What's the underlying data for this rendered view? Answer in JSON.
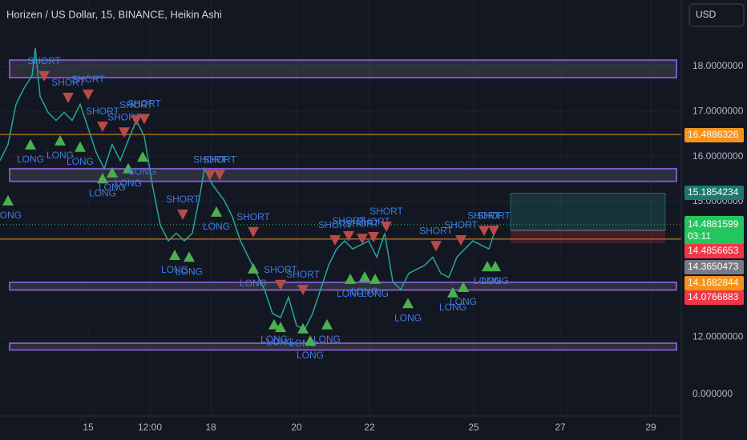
{
  "chart_data": {
    "type": "line",
    "title": "Horizen / US Dollar, 15, BINANCE, Heikin Ashi",
    "currency": "USD",
    "x": [
      0,
      10,
      20,
      30,
      40,
      44,
      50,
      60,
      70,
      80,
      90,
      100,
      110,
      120,
      130,
      140,
      150,
      160,
      170,
      180,
      190,
      200,
      210,
      220,
      230,
      240,
      250,
      255,
      265,
      280,
      290,
      300,
      310,
      320,
      330,
      340,
      350,
      360,
      370,
      380,
      390,
      400,
      410,
      420,
      430,
      440,
      450,
      460,
      470,
      480,
      490,
      500,
      510,
      520,
      530,
      540,
      550,
      560,
      570,
      580,
      590,
      600,
      610,
      620
    ],
    "values": [
      15.91,
      16.27,
      17.16,
      17.52,
      17.79,
      18.41,
      17.34,
      16.98,
      16.8,
      16.98,
      16.8,
      17.16,
      16.63,
      16.09,
      15.73,
      16.27,
      15.91,
      16.36,
      16.8,
      16.45,
      15.38,
      14.48,
      14.13,
      14.3,
      14.13,
      14.3,
      15.2,
      15.73,
      15.38,
      15.02,
      14.66,
      14.13,
      13.77,
      13.41,
      13.05,
      12.52,
      12.43,
      12.88,
      12.25,
      12.16,
      12.52,
      13.05,
      13.59,
      13.95,
      14.13,
      13.95,
      14.04,
      14.13,
      13.77,
      14.3,
      13.23,
      13.05,
      13.41,
      13.5,
      13.59,
      13.77,
      13.41,
      13.32,
      13.77,
      13.95,
      14.13,
      14.04,
      13.95,
      14.48
    ],
    "color": "#26a69a",
    "xlim": [
      0,
      850
    ],
    "xticks": [
      {
        "value": 110,
        "label": "15"
      },
      {
        "value": 187,
        "label": "12:00"
      },
      {
        "value": 263,
        "label": "18"
      },
      {
        "value": 370,
        "label": "20"
      },
      {
        "value": 461,
        "label": "22"
      },
      {
        "value": 591,
        "label": "25"
      },
      {
        "value": 699,
        "label": "27"
      },
      {
        "value": 812,
        "label": "29"
      }
    ],
    "ylim": [
      10.245,
      19.473
    ],
    "yticks": [
      {
        "value": 12,
        "label": "12.0000000"
      },
      {
        "value": 15,
        "label": "15.0000000"
      },
      {
        "value": 16,
        "label": "16.0000000"
      },
      {
        "value": 17,
        "label": "17.0000000"
      },
      {
        "value": 18,
        "label": "18.0000000"
      }
    ],
    "axis_bottom_label": "0.000000",
    "grid": true,
    "zones": [
      [
        17.75,
        18.14
      ],
      [
        15.45,
        15.73
      ],
      [
        13.04,
        13.21
      ],
      [
        11.71,
        11.86
      ]
    ],
    "levels": [
      {
        "value": 16.4886326,
        "color": "#f7931a"
      },
      {
        "value": 14.1682844,
        "color": "#f7931a"
      }
    ],
    "price_labels": [
      {
        "value": 16.4886326,
        "color": "#f7931a"
      },
      {
        "value": 15.1854234,
        "color": "#1c7a6e"
      },
      {
        "value": 14.4881599,
        "color": "#22c55e",
        "countdown": "03:11"
      },
      {
        "value": 14.4856653,
        "color": "#f23645"
      },
      {
        "value": 14.3650473,
        "color": "#787b86"
      },
      {
        "value": 14.1682844,
        "color": "#f7931a"
      },
      {
        "value": 14.0766883,
        "color": "#f23645"
      }
    ],
    "position": {
      "x_start": 637,
      "x_end": 830
    },
    "signals": [
      {
        "label": "SHORT",
        "x": 55,
        "price": 17.79
      },
      {
        "label": "SHORT",
        "x": 85,
        "price": 17.31
      },
      {
        "label": "SHORT",
        "x": 110,
        "price": 17.38
      },
      {
        "label": "SHORT",
        "x": 128,
        "price": 16.67
      },
      {
        "label": "SHORT",
        "x": 155,
        "price": 16.54
      },
      {
        "label": "SHORT",
        "x": 170,
        "price": 16.81
      },
      {
        "label": "SHORT",
        "x": 180,
        "price": 16.84
      },
      {
        "label": "SHORT",
        "x": 228,
        "price": 14.72
      },
      {
        "label": "SHORT",
        "x": 262,
        "price": 15.6
      },
      {
        "label": "SHORT",
        "x": 274,
        "price": 15.6
      },
      {
        "label": "SHORT",
        "x": 316,
        "price": 14.33
      },
      {
        "label": "SHORT",
        "x": 350,
        "price": 13.16
      },
      {
        "label": "SHORT",
        "x": 378,
        "price": 13.05
      },
      {
        "label": "SHORT",
        "x": 418,
        "price": 14.15
      },
      {
        "label": "SHORT",
        "x": 435,
        "price": 14.24
      },
      {
        "label": "SHORT",
        "x": 452,
        "price": 14.18
      },
      {
        "label": "SHORT",
        "x": 466,
        "price": 14.22
      },
      {
        "label": "SHORT",
        "x": 482,
        "price": 14.45
      },
      {
        "label": "SHORT",
        "x": 544,
        "price": 14.02
      },
      {
        "label": "SHORT",
        "x": 575,
        "price": 14.15
      },
      {
        "label": "SHORT",
        "x": 604,
        "price": 14.36
      },
      {
        "label": "SHORT",
        "x": 616,
        "price": 14.36
      },
      {
        "label": "LONG",
        "x": 10,
        "price": 15.04
      },
      {
        "label": "LONG",
        "x": 38,
        "price": 16.28
      },
      {
        "label": "LONG",
        "x": 75,
        "price": 16.37
      },
      {
        "label": "LONG",
        "x": 100,
        "price": 16.23
      },
      {
        "label": "LONG",
        "x": 128,
        "price": 15.53
      },
      {
        "label": "LONG",
        "x": 140,
        "price": 15.66
      },
      {
        "label": "LONG",
        "x": 160,
        "price": 15.75
      },
      {
        "label": "LONG",
        "x": 178,
        "price": 16.01
      },
      {
        "label": "LONG",
        "x": 218,
        "price": 13.83
      },
      {
        "label": "LONG",
        "x": 236,
        "price": 13.79
      },
      {
        "label": "LONG",
        "x": 270,
        "price": 14.79
      },
      {
        "label": "LONG",
        "x": 316,
        "price": 13.53
      },
      {
        "label": "LONG",
        "x": 342,
        "price": 12.29
      },
      {
        "label": "LONG",
        "x": 350,
        "price": 12.23
      },
      {
        "label": "LONG",
        "x": 378,
        "price": 12.2
      },
      {
        "label": "LONG",
        "x": 387,
        "price": 11.93
      },
      {
        "label": "LONG",
        "x": 408,
        "price": 12.29
      },
      {
        "label": "LONG",
        "x": 437,
        "price": 13.3
      },
      {
        "label": "LONG",
        "x": 455,
        "price": 13.35
      },
      {
        "label": "LONG",
        "x": 468,
        "price": 13.3
      },
      {
        "label": "LONG",
        "x": 509,
        "price": 12.76
      },
      {
        "label": "LONG",
        "x": 565,
        "price": 13.0
      },
      {
        "label": "LONG",
        "x": 578,
        "price": 13.12
      },
      {
        "label": "LONG",
        "x": 608,
        "price": 13.58
      },
      {
        "label": "LONG",
        "x": 618,
        "price": 13.58
      }
    ]
  }
}
